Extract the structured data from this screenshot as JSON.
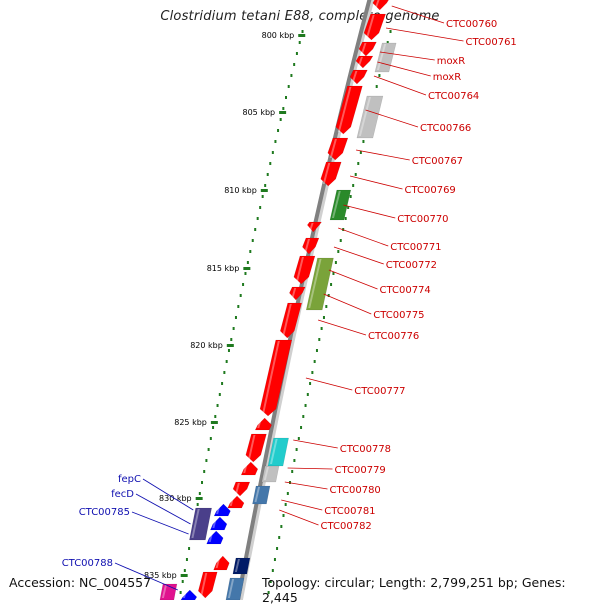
{
  "title": "Clostridium tetani E88, complete genome",
  "footer": {
    "accession": "Accession: NC_004557",
    "topology": "Topology: circular; Length: 2,799,251 bp; Genes: 2,445"
  },
  "colors": {
    "gene_forward": "#ff0000",
    "gene_grey": "#c0c0c0",
    "gene_green": "#2a8a2a",
    "gene_olive": "#7aa33a",
    "gene_cyan": "#22cccc",
    "gene_steelblue": "#4477aa",
    "gene_purple": "#4a3f8a",
    "gene_blue": "#0000ff",
    "gene_magenta": "#e0128e",
    "gene_navy": "#001a66",
    "label_red": "#cc0000",
    "label_blue": "#1010b0",
    "tick_green": "#1f7a1f",
    "backbone": "#808080"
  },
  "scale_ticks": [
    {
      "label": "800 kbp"
    },
    {
      "label": "805 kbp"
    },
    {
      "label": "810 kbp"
    },
    {
      "label": "815 kbp"
    },
    {
      "label": "820 kbp"
    },
    {
      "label": "825 kbp"
    },
    {
      "label": "830 kbp"
    },
    {
      "label": "835 kbp"
    }
  ],
  "gene_labels_right": [
    "CTC00760",
    "CTC00761",
    "moxR",
    "moxR",
    "CTC00764",
    "CTC00766",
    "CTC00767",
    "CTC00769",
    "CTC00770",
    "CTC00771",
    "CTC00772",
    "CTC00774",
    "CTC00775",
    "CTC00776",
    "CTC00777",
    "CTC00778",
    "CTC00779",
    "CTC00780",
    "CTC00781",
    "CTC00782"
  ],
  "gene_labels_left": [
    "fepC",
    "fecD",
    "CTC00785",
    "CTC00788"
  ]
}
